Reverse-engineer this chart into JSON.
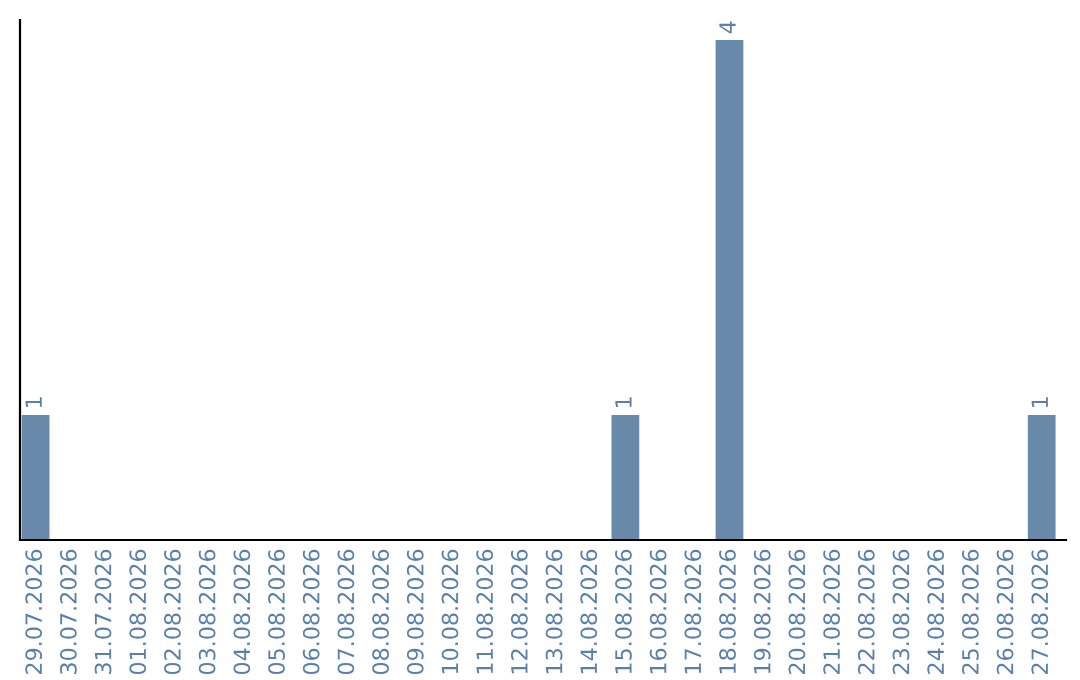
{
  "chart_data": {
    "type": "bar",
    "categories": [
      "29.07.2026",
      "30.07.2026",
      "31.07.2026",
      "01.08.2026",
      "02.08.2026",
      "03.08.2026",
      "04.08.2026",
      "05.08.2026",
      "06.08.2026",
      "07.08.2026",
      "08.08.2026",
      "09.08.2026",
      "10.08.2026",
      "11.08.2026",
      "12.08.2026",
      "13.08.2026",
      "14.08.2026",
      "15.08.2026",
      "16.08.2026",
      "17.08.2026",
      "18.08.2026",
      "19.08.2026",
      "20.08.2026",
      "21.08.2026",
      "22.08.2026",
      "23.08.2026",
      "24.08.2026",
      "25.08.2026",
      "26.08.2026",
      "27.08.2026"
    ],
    "values": [
      1,
      0,
      0,
      0,
      0,
      0,
      0,
      0,
      0,
      0,
      0,
      0,
      0,
      0,
      0,
      0,
      0,
      1,
      0,
      0,
      4,
      0,
      0,
      0,
      0,
      0,
      0,
      0,
      0,
      1
    ],
    "value_labels": [
      "1",
      null,
      null,
      null,
      null,
      null,
      null,
      null,
      null,
      null,
      null,
      null,
      null,
      null,
      null,
      null,
      null,
      "1",
      null,
      null,
      "4",
      null,
      null,
      null,
      null,
      null,
      null,
      null,
      null,
      "1"
    ],
    "color": "#6989aa",
    "tick_labels": "x",
    "grid": false,
    "legend": false
  }
}
